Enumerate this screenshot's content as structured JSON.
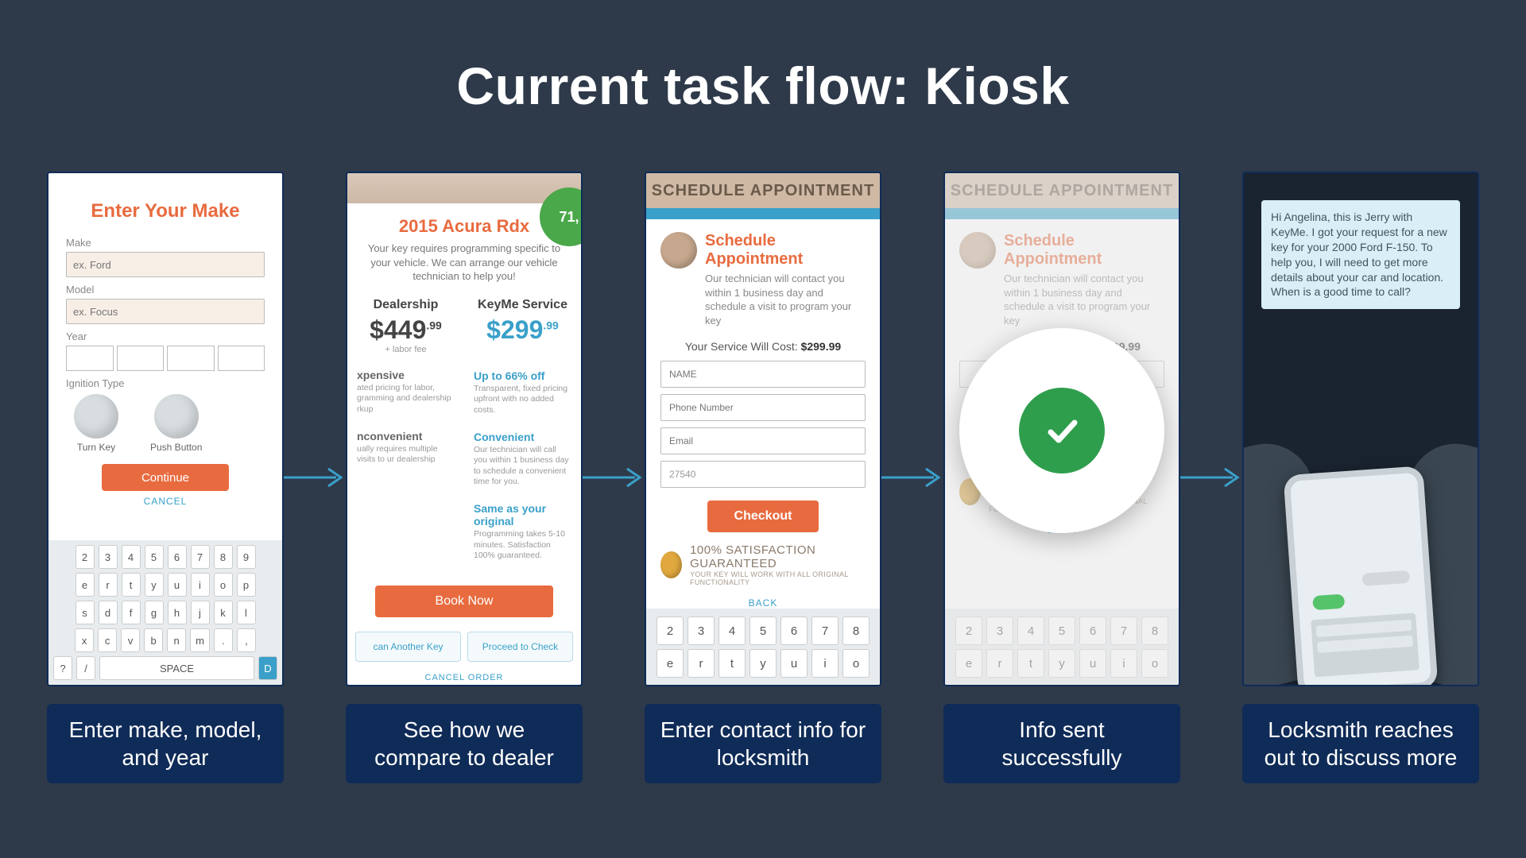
{
  "colors": {
    "slide_bg": "#2e3a4a",
    "caption_bg": "#0f2b57",
    "accent_orange": "#e86b3f",
    "accent_blue": "#3aa0c9",
    "success_green": "#2e9e4c",
    "badge_green": "#4aa84a",
    "arrow_color": "#3aa0c9"
  },
  "title": "Current task flow: Kiosk",
  "steps": [
    {
      "caption": "Enter make, model, and year"
    },
    {
      "caption": "See how we compare to dealer"
    },
    {
      "caption": "Enter contact info for locksmith"
    },
    {
      "caption": "Info sent successfully"
    },
    {
      "caption": "Locksmith reaches out to discuss more"
    }
  ],
  "screen1": {
    "title": "Enter Your Make",
    "labels": {
      "make": "Make",
      "model": "Model",
      "year": "Year",
      "ignition": "Ignition Type"
    },
    "placeholders": {
      "make": "ex. Ford",
      "model": "ex. Focus"
    },
    "ignition_options": {
      "turn_key": "Turn Key",
      "push_button": "Push Button"
    },
    "continue": "Continue",
    "cancel": "CANCEL",
    "keyboard": {
      "row1": [
        "2",
        "3",
        "4",
        "5",
        "6",
        "7",
        "8",
        "9"
      ],
      "row2": [
        "e",
        "r",
        "t",
        "y",
        "u",
        "i",
        "o",
        "p"
      ],
      "row3": [
        "s",
        "d",
        "f",
        "g",
        "h",
        "j",
        "k",
        "l"
      ],
      "row4": [
        "x",
        "c",
        "v",
        "b",
        "n",
        "m",
        ".",
        ","
      ],
      "space": "SPACE",
      "done": "D"
    }
  },
  "screen2": {
    "vehicle": "2015 Acura Rdx",
    "subtitle": "Your key requires programming specific to your vehicle. We can arrange our vehicle technician to help you!",
    "badge_value": "71,",
    "dealership": {
      "label": "Dealership",
      "price_main": "$449",
      "price_cents": ".99",
      "labor_note": "+ labor fee",
      "feat1_title": "xpensive",
      "feat1_desc": "ated pricing for labor, gramming and dealership rkup",
      "feat2_title": "nconvenient",
      "feat2_desc": "ually requires multiple visits to ur dealership"
    },
    "keyme": {
      "label": "KeyMe Service",
      "price_main": "$299",
      "price_cents": ".99",
      "feat1_title": "Up to 66% off",
      "feat1_desc": "Transparent, fixed pricing upfront with no added costs.",
      "feat2_title": "Convenient",
      "feat2_desc": "Our technician will call you within 1 business day to schedule a convenient time for you.",
      "feat3_title": "Same as your original",
      "feat3_desc": "Programming takes 5-10 minutes. Satisfaction 100% guaranteed."
    },
    "book_now": "Book Now",
    "scan_another": "can Another Key",
    "proceed": "Proceed to Check",
    "cancel_order": "CANCEL ORDER"
  },
  "screen3": {
    "header": "SCHEDULE APPOINTMENT",
    "title": "Schedule Appointment",
    "desc": "Our technician will contact you within 1 business day and schedule a visit to program your key",
    "cost_label": "Your Service Will Cost:",
    "cost_value": "$299.99",
    "fields": {
      "name": "NAME",
      "phone": "Phone Number",
      "email": "Email",
      "zip": "27540"
    },
    "checkout": "Checkout",
    "guarantee_line1": "100% SATISFACTION GUARANTEED",
    "guarantee_line2": "YOUR KEY WILL WORK WITH ALL ORIGINAL FUNCTIONALITY",
    "back": "BACK",
    "keyboard": {
      "row1": [
        "2",
        "3",
        "4",
        "5",
        "6",
        "7",
        "8"
      ],
      "row2": [
        "e",
        "r",
        "t",
        "y",
        "u",
        "i",
        "o"
      ]
    }
  },
  "screen4": {
    "cost_value_partial": "99.99"
  },
  "screen5": {
    "sms_text": "Hi Angelina, this is Jerry with KeyMe. I got your request for a new key for your 2000 Ford F-150. To help you, I will need to get more details about your car and location. When is a good time to call?"
  }
}
